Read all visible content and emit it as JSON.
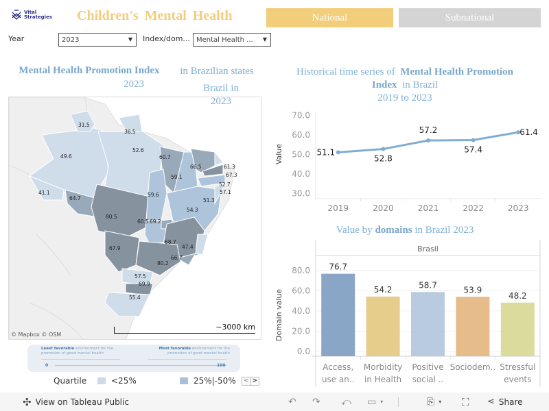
{
  "header": {
    "logo_text_line1": "Vital",
    "logo_text_line2": "Strategies",
    "title": "Children's Mental Health",
    "nav": [
      {
        "label": "National",
        "active": true,
        "color": "#f2cd7a"
      },
      {
        "label": "Subnational",
        "active": false,
        "color": "#d4d4d4"
      }
    ]
  },
  "filters": {
    "year_label": "Year",
    "year_value": "2023",
    "index_label": "Index/dom...",
    "index_value": "Mental Health ..."
  },
  "map_panel": {
    "title_bold": "Mental Health Promotion Index",
    "title_rest": "in Brazilian states",
    "title_year": "2023",
    "overlay_line1": "Brazil in",
    "overlay_line2": "2023",
    "credit": "© Mapbox  © OSM",
    "scale_label": "~3000 km",
    "state_values": [
      "31.5",
      "36.5",
      "49.6",
      "52.6",
      "60.7",
      "66.5",
      "61.3",
      "67.3",
      "59.1",
      "52.7",
      "57.1",
      "41.1",
      "64.7",
      "59.6",
      "51.3",
      "54.3",
      "80.5",
      "60.5",
      "69.2",
      "68.7",
      "47.4",
      "67.9",
      "66.7",
      "80.2",
      "57.5",
      "69.9",
      "55.4"
    ],
    "legend": {
      "least_bold": "Least favorable",
      "least_rest": "environment for the promotion of good mental health",
      "most_bold": "Most favorable",
      "most_rest": "environment for the promotion of good mental health",
      "min": "0",
      "max": "100"
    },
    "quartile_label": "Quartile",
    "quartiles": [
      {
        "label": "<25%",
        "color": "#cddbe8"
      },
      {
        "label": "25%|-50%",
        "color": "#a9c1d8"
      }
    ],
    "colors": {
      "q1": "#cfdcea",
      "q2": "#aec4da",
      "q3": "#98a9b9",
      "q4": "#86939f",
      "land": "#efefef"
    }
  },
  "line_panel": {
    "title_pre": "Historical time series of",
    "title_bold1": "Mental Health Promotion",
    "title_bold2": "Index",
    "title_post": "in Brazil",
    "title_years": "2019 to 2023"
  },
  "bar_panel": {
    "title_pre": "Value by",
    "title_bold": "domains",
    "title_post": "in Brazil 2023",
    "facet_label": "Brasil"
  },
  "chart_data": [
    {
      "type": "line",
      "title": "Historical time series of Mental Health Promotion Index in Brazil 2019 to 2023",
      "xlabel": "",
      "ylabel": "Value",
      "x": [
        "2019",
        "2020",
        "2021",
        "2022",
        "2023"
      ],
      "values": [
        51.1,
        52.8,
        57.2,
        57.4,
        61.4
      ],
      "yticks": [
        "70.0",
        "60.0",
        "50.0",
        "40.0",
        "30.0"
      ],
      "ylim": [
        28,
        72
      ],
      "color": "#7fadd3"
    },
    {
      "type": "bar",
      "title": "Value by domains in Brazil 2023",
      "facet": "Brasil",
      "xlabel": "",
      "ylabel": "Domain value",
      "categories": [
        [
          "Access,",
          "use an.."
        ],
        [
          "Morbidity",
          "in Health"
        ],
        [
          "Positive",
          "social .."
        ],
        [
          "Sociodem.."
        ],
        [
          "Stressful",
          "events"
        ]
      ],
      "values": [
        76.7,
        54.2,
        58.7,
        53.9,
        48.2
      ],
      "colors": [
        "#8aa6c6",
        "#e6cd8b",
        "#b9ccdf",
        "#e6bc8a",
        "#dcdb9e"
      ],
      "yticks": [
        "80.0",
        "60.0",
        "40.0",
        "20.0",
        "0.0"
      ],
      "ylim": [
        0,
        90
      ]
    }
  ],
  "footer": {
    "view_label": "View on Tableau Public",
    "share_label": "Share"
  }
}
